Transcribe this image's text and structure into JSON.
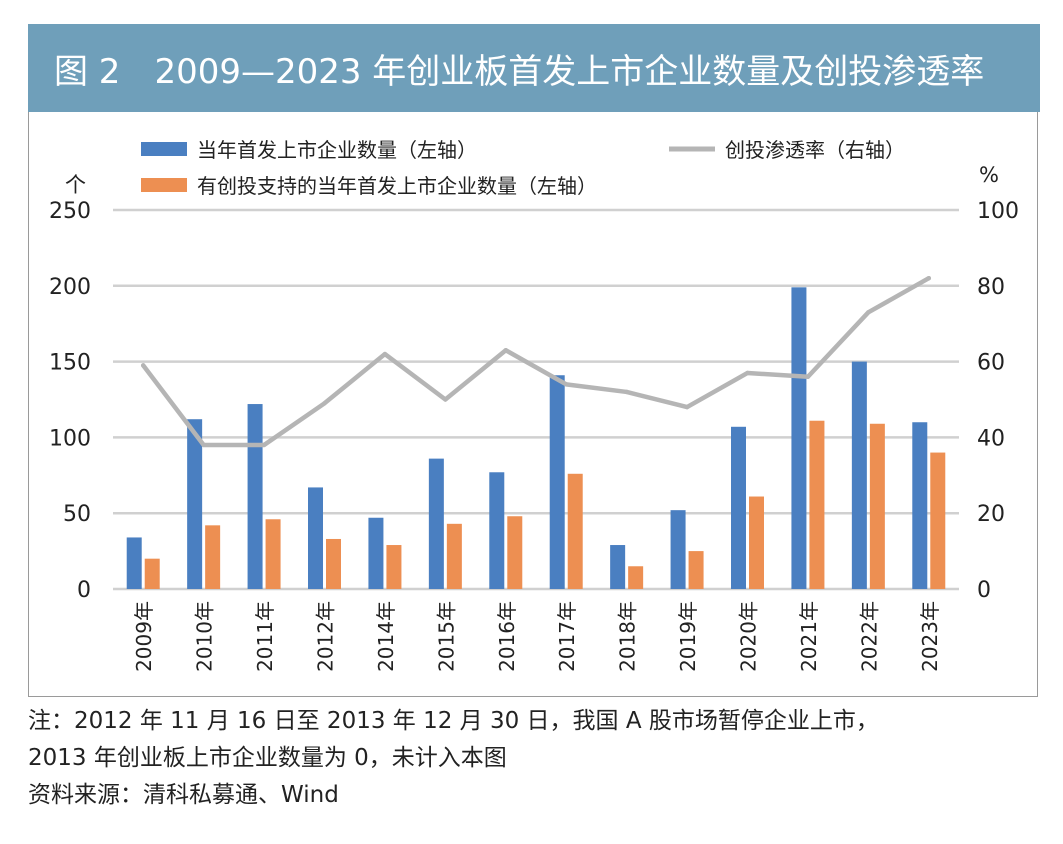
{
  "header": {
    "title": "图 2　2009—2023 年创业板首发上市企业数量及创投渗透率"
  },
  "chart_data": {
    "type": "bar",
    "categories": [
      "2009年",
      "2010年",
      "2011年",
      "2012年",
      "2014年",
      "2015年",
      "2016年",
      "2017年",
      "2018年",
      "2019年",
      "2020年",
      "2021年",
      "2022年",
      "2023年"
    ],
    "series": [
      {
        "name": "当年首发上市企业数量（左轴）",
        "kind": "bar",
        "axis": "left",
        "color": "#4a7fc1",
        "values": [
          34,
          112,
          122,
          67,
          47,
          86,
          77,
          141,
          29,
          52,
          107,
          199,
          150,
          110
        ]
      },
      {
        "name": "有创投支持的当年首发上市企业数量（左轴）",
        "kind": "bar",
        "axis": "left",
        "color": "#ed8f52",
        "values": [
          20,
          42,
          46,
          33,
          29,
          43,
          48,
          76,
          15,
          25,
          61,
          111,
          109,
          90
        ]
      },
      {
        "name": "创投渗透率（右轴）",
        "kind": "line",
        "axis": "right",
        "color": "#b5b5b5",
        "values": [
          59,
          38,
          38,
          49,
          62,
          50,
          63,
          54,
          52,
          48,
          57,
          56,
          73,
          82
        ]
      }
    ],
    "y_left": {
      "unit": "个",
      "min": 0,
      "max": 250,
      "ticks": [
        0,
        50,
        100,
        150,
        200,
        250
      ]
    },
    "y_right": {
      "unit": "%",
      "min": 0,
      "max": 100,
      "ticks": [
        0,
        20,
        40,
        60,
        80,
        100
      ]
    },
    "grid": true,
    "legend_position": "top"
  },
  "notes": {
    "line1": "注：2012 年 11 月 16 日至 2013 年 12 月 30 日，我国 A 股市场暂停企业上市，",
    "line2": "2013 年创业板上市企业数量为 0，未计入本图",
    "source": "资料来源：清科私募通、Wind"
  }
}
